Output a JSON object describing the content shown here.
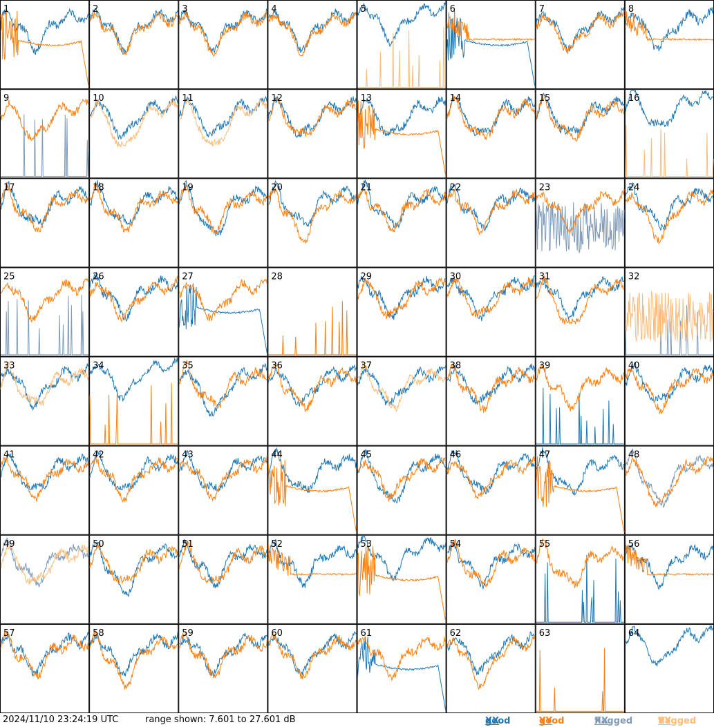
{
  "chart_data": {
    "type": "line",
    "layout": "8x8 small multiples of per-tile antenna spectra",
    "x_axis": "frequency channel (no labels shown)",
    "y_units": "dB",
    "ylim": [
      7.601,
      27.601
    ],
    "grid": false,
    "legend_placement": "bottom-right",
    "series_style": {
      "good_xx": "#1f77b4",
      "good_yy": "#ff7f0e",
      "flagged_xx": "#7f9bb8",
      "flagged_yy": "#ffbb78"
    },
    "panels": [
      {
        "label": "1",
        "xx": "good",
        "yy": "good",
        "xx_shape": "normal",
        "yy_shape": "rolloff"
      },
      {
        "label": "2",
        "xx": "good",
        "yy": "good",
        "xx_shape": "normal",
        "yy_shape": "normal"
      },
      {
        "label": "3",
        "xx": "good",
        "yy": "good",
        "xx_shape": "normal",
        "yy_shape": "normal"
      },
      {
        "label": "4",
        "xx": "good",
        "yy": "good",
        "xx_shape": "normal",
        "yy_shape": "normal"
      },
      {
        "label": "5",
        "xx": "good",
        "yy": "flagged",
        "xx_shape": "high",
        "yy_shape": "spikes"
      },
      {
        "label": "6",
        "xx": "good",
        "yy": "good",
        "xx_shape": "rolloff",
        "yy_shape": "flat"
      },
      {
        "label": "7",
        "xx": "good",
        "yy": "good",
        "xx_shape": "normal",
        "yy_shape": "normal"
      },
      {
        "label": "8",
        "xx": "good",
        "yy": "good",
        "xx_shape": "normal",
        "yy_shape": "flat"
      },
      {
        "label": "9",
        "xx": "flagged",
        "yy": "good",
        "xx_shape": "spikes",
        "yy_shape": "normal"
      },
      {
        "label": "10",
        "xx": "good",
        "yy": "flagged",
        "xx_shape": "normal",
        "yy_shape": "deep"
      },
      {
        "label": "11",
        "xx": "good",
        "yy": "flagged",
        "xx_shape": "normal",
        "yy_shape": "deep"
      },
      {
        "label": "12",
        "xx": "good",
        "yy": "good",
        "xx_shape": "normal",
        "yy_shape": "normal"
      },
      {
        "label": "13",
        "xx": "good",
        "yy": "good",
        "xx_shape": "normal",
        "yy_shape": "rolloff"
      },
      {
        "label": "14",
        "xx": "good",
        "yy": "good",
        "xx_shape": "normal",
        "yy_shape": "normal"
      },
      {
        "label": "15",
        "xx": "good",
        "yy": "good",
        "xx_shape": "normal",
        "yy_shape": "normal"
      },
      {
        "label": "16",
        "xx": "good",
        "yy": "flagged",
        "xx_shape": "high",
        "yy_shape": "spikes"
      },
      {
        "label": "17",
        "xx": "good",
        "yy": "good",
        "xx_shape": "normal",
        "yy_shape": "normal"
      },
      {
        "label": "18",
        "xx": "good",
        "yy": "good",
        "xx_shape": "normal",
        "yy_shape": "normal"
      },
      {
        "label": "19",
        "xx": "good",
        "yy": "good",
        "xx_shape": "deep",
        "yy_shape": "normal"
      },
      {
        "label": "20",
        "xx": "good",
        "yy": "good",
        "xx_shape": "normal",
        "yy_shape": "deep"
      },
      {
        "label": "21",
        "xx": "good",
        "yy": "good",
        "xx_shape": "normal",
        "yy_shape": "normal"
      },
      {
        "label": "22",
        "xx": "good",
        "yy": "good",
        "xx_shape": "normal",
        "yy_shape": "normal"
      },
      {
        "label": "23",
        "xx": "flagged",
        "yy": "good",
        "xx_shape": "noisy",
        "yy_shape": "normal"
      },
      {
        "label": "24",
        "xx": "good",
        "yy": "good",
        "xx_shape": "normal",
        "yy_shape": "deep"
      },
      {
        "label": "25",
        "xx": "flagged",
        "yy": "good",
        "xx_shape": "spikes",
        "yy_shape": "normal"
      },
      {
        "label": "26",
        "xx": "good",
        "yy": "good",
        "xx_shape": "normal",
        "yy_shape": "normal"
      },
      {
        "label": "27",
        "xx": "good",
        "yy": "good",
        "xx_shape": "rolloff",
        "yy_shape": "normal"
      },
      {
        "label": "28",
        "xx": "none",
        "yy": "good",
        "xx_shape": "none",
        "yy_shape": "spikes"
      },
      {
        "label": "29",
        "xx": "good",
        "yy": "good",
        "xx_shape": "normal",
        "yy_shape": "normal"
      },
      {
        "label": "30",
        "xx": "good",
        "yy": "good",
        "xx_shape": "normal",
        "yy_shape": "normal"
      },
      {
        "label": "31",
        "xx": "good",
        "yy": "good",
        "xx_shape": "normal",
        "yy_shape": "deep"
      },
      {
        "label": "32",
        "xx": "flagged",
        "yy": "flagged",
        "xx_shape": "spikes",
        "yy_shape": "noisy"
      },
      {
        "label": "33",
        "xx": "good",
        "yy": "flagged",
        "xx_shape": "normal",
        "yy_shape": "normal"
      },
      {
        "label": "34",
        "xx": "good",
        "yy": "good",
        "xx_shape": "high",
        "yy_shape": "spikes"
      },
      {
        "label": "35",
        "xx": "good",
        "yy": "good",
        "xx_shape": "deep",
        "yy_shape": "normal"
      },
      {
        "label": "36",
        "xx": "good",
        "yy": "good",
        "xx_shape": "normal",
        "yy_shape": "normal"
      },
      {
        "label": "37",
        "xx": "good",
        "yy": "flagged",
        "xx_shape": "normal",
        "yy_shape": "normal"
      },
      {
        "label": "38",
        "xx": "good",
        "yy": "good",
        "xx_shape": "normal",
        "yy_shape": "normal"
      },
      {
        "label": "39",
        "xx": "good",
        "yy": "good",
        "xx_shape": "spikes",
        "yy_shape": "normal"
      },
      {
        "label": "40",
        "xx": "good",
        "yy": "good",
        "xx_shape": "normal",
        "yy_shape": "normal"
      },
      {
        "label": "41",
        "xx": "good",
        "yy": "good",
        "xx_shape": "normal",
        "yy_shape": "normal"
      },
      {
        "label": "42",
        "xx": "good",
        "yy": "good",
        "xx_shape": "normal",
        "yy_shape": "normal"
      },
      {
        "label": "43",
        "xx": "good",
        "yy": "good",
        "xx_shape": "normal",
        "yy_shape": "normal"
      },
      {
        "label": "44",
        "xx": "good",
        "yy": "good",
        "xx_shape": "normal",
        "yy_shape": "rolloff"
      },
      {
        "label": "45",
        "xx": "good",
        "yy": "good",
        "xx_shape": "deep",
        "yy_shape": "normal"
      },
      {
        "label": "46",
        "xx": "good",
        "yy": "good",
        "xx_shape": "normal",
        "yy_shape": "normal"
      },
      {
        "label": "47",
        "xx": "good",
        "yy": "good",
        "xx_shape": "normal",
        "yy_shape": "rolloff"
      },
      {
        "label": "48",
        "xx": "flagged",
        "yy": "good",
        "xx_shape": "deep",
        "yy_shape": "deep"
      },
      {
        "label": "49",
        "xx": "flagged",
        "yy": "flagged",
        "xx_shape": "normal",
        "yy_shape": "normal"
      },
      {
        "label": "50",
        "xx": "good",
        "yy": "good",
        "xx_shape": "deep",
        "yy_shape": "normal"
      },
      {
        "label": "51",
        "xx": "good",
        "yy": "good",
        "xx_shape": "normal",
        "yy_shape": "normal"
      },
      {
        "label": "52",
        "xx": "good",
        "yy": "good",
        "xx_shape": "normal",
        "yy_shape": "flat"
      },
      {
        "label": "53",
        "xx": "good",
        "yy": "good",
        "xx_shape": "high",
        "yy_shape": "rolloff"
      },
      {
        "label": "54",
        "xx": "good",
        "yy": "good",
        "xx_shape": "normal",
        "yy_shape": "normal"
      },
      {
        "label": "55",
        "xx": "good",
        "yy": "good",
        "xx_shape": "spikes",
        "yy_shape": "normal"
      },
      {
        "label": "56",
        "xx": "good",
        "yy": "good",
        "xx_shape": "normal",
        "yy_shape": "flat"
      },
      {
        "label": "57",
        "xx": "good",
        "yy": "good",
        "xx_shape": "normal",
        "yy_shape": "normal"
      },
      {
        "label": "58",
        "xx": "good",
        "yy": "good",
        "xx_shape": "normal",
        "yy_shape": "deep"
      },
      {
        "label": "59",
        "xx": "good",
        "yy": "good",
        "xx_shape": "normal",
        "yy_shape": "normal"
      },
      {
        "label": "60",
        "xx": "good",
        "yy": "good",
        "xx_shape": "normal",
        "yy_shape": "normal"
      },
      {
        "label": "61",
        "xx": "good",
        "yy": "good",
        "xx_shape": "rolloff",
        "yy_shape": "normal"
      },
      {
        "label": "62",
        "xx": "good",
        "yy": "good",
        "xx_shape": "normal",
        "yy_shape": "deep"
      },
      {
        "label": "63",
        "xx": "none",
        "yy": "good",
        "xx_shape": "none",
        "yy_shape": "spikes"
      },
      {
        "label": "64",
        "xx": "good",
        "yy": "none",
        "xx_shape": "high",
        "yy_shape": "none"
      }
    ]
  },
  "footer": {
    "timestamp": "2024/11/10 23:24:19 UTC",
    "range_text": "range shown: 7.601 to 27.601 dB",
    "legend": {
      "good_xx": {
        "word": "good",
        "pol": "XX"
      },
      "good_yy": {
        "word": "good",
        "pol": "YY"
      },
      "flagged_xx": {
        "word": "flagged",
        "pol": "XX"
      },
      "flagged_yy": {
        "word": "flagged",
        "pol": "YY"
      }
    }
  }
}
